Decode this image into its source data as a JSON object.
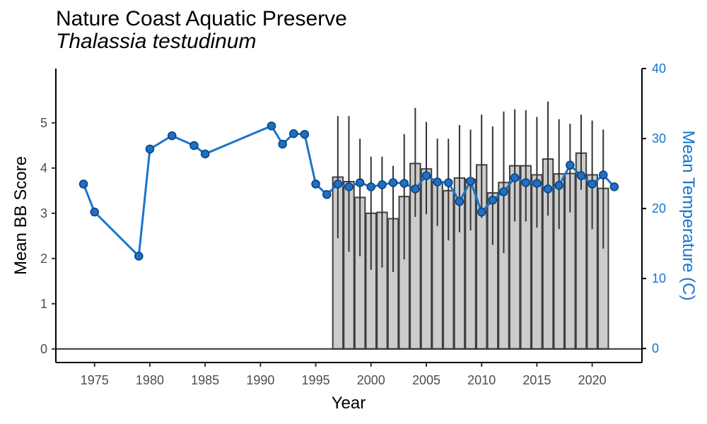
{
  "chart_data": {
    "type": "bar",
    "title": "Nature Coast Aquatic Preserve",
    "subtitle": "Thalassia testudinum",
    "xlabel": "Year",
    "ylabel": "Mean BB Score",
    "y2label": "Mean Temperature (C)",
    "xlim": [
      1971.5,
      2024.5
    ],
    "ylim": [
      -0.3,
      6.2
    ],
    "y2lim": [
      -2,
      40
    ],
    "x_ticks": [
      1975,
      1980,
      1985,
      1990,
      1995,
      2000,
      2005,
      2010,
      2015,
      2020
    ],
    "y_ticks": [
      0,
      1,
      2,
      3,
      4,
      5
    ],
    "y2_ticks": [
      0,
      10,
      20,
      30,
      40
    ],
    "grid": false,
    "colors": {
      "bar_fill": "#cccccc",
      "bar_stroke": "#404040",
      "line": "#1874cd",
      "point_fill": "#1e6fc6",
      "point_stroke": "#0b3f7a",
      "right_axis": "#1874cd"
    },
    "bb_series": {
      "name": "Mean BB Score",
      "x": [
        1997,
        1998,
        1999,
        2000,
        2001,
        2002,
        2003,
        2004,
        2005,
        2006,
        2007,
        2008,
        2009,
        2010,
        2011,
        2012,
        2013,
        2014,
        2015,
        2016,
        2017,
        2018,
        2019,
        2020,
        2021
      ],
      "values": [
        3.8,
        3.7,
        3.35,
        3.0,
        3.02,
        2.88,
        3.37,
        4.1,
        3.98,
        3.7,
        3.5,
        3.78,
        3.75,
        4.07,
        3.45,
        3.68,
        4.05,
        4.05,
        3.85,
        4.2,
        3.87,
        3.88,
        4.33,
        3.85,
        3.55
      ],
      "err_low": [
        2.45,
        2.15,
        2.05,
        1.75,
        1.8,
        1.7,
        1.98,
        2.92,
        2.98,
        2.72,
        2.4,
        2.58,
        2.62,
        2.9,
        2.3,
        2.12,
        2.82,
        2.82,
        2.68,
        2.95,
        2.65,
        3.02,
        3.52,
        2.65,
        2.22
      ],
      "err_high": [
        5.15,
        5.15,
        4.65,
        4.25,
        4.25,
        4.05,
        4.75,
        5.33,
        5.02,
        4.65,
        4.65,
        4.95,
        4.85,
        5.18,
        4.92,
        5.25,
        5.3,
        5.28,
        5.13,
        5.47,
        5.08,
        4.98,
        5.18,
        5.05,
        4.85
      ]
    },
    "temp_series": {
      "name": "Mean Temperature",
      "x": [
        1974,
        1975,
        1979,
        1980,
        1982,
        1984,
        1985,
        1991,
        1992,
        1993,
        1994,
        1995,
        1996,
        1997,
        1998,
        1999,
        2000,
        2001,
        2002,
        2003,
        2004,
        2005,
        2006,
        2007,
        2008,
        2009,
        2010,
        2011,
        2012,
        2013,
        2014,
        2015,
        2016,
        2017,
        2018,
        2019,
        2020,
        2021,
        2022
      ],
      "values": [
        23.5,
        19.5,
        13.2,
        28.5,
        30.4,
        29.0,
        27.8,
        31.8,
        29.2,
        30.7,
        30.6,
        23.5,
        22.0,
        23.5,
        23.1,
        23.7,
        23.1,
        23.4,
        23.7,
        23.6,
        22.8,
        24.7,
        23.8,
        23.7,
        21.0,
        23.9,
        19.5,
        21.2,
        22.4,
        24.4,
        23.7,
        23.6,
        22.8,
        23.3,
        26.2,
        24.7,
        23.5,
        24.8,
        23.1
      ]
    }
  }
}
